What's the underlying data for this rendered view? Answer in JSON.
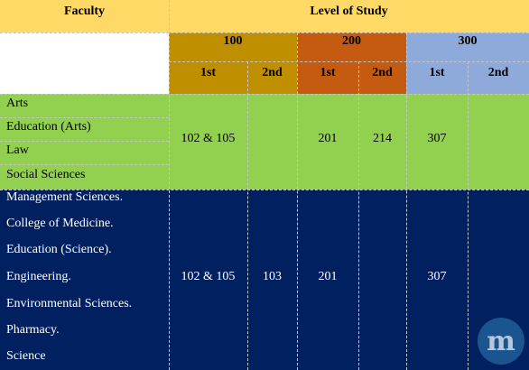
{
  "header": {
    "faculty": "Faculty",
    "level_of_study": "Level of Study"
  },
  "levels": [
    {
      "label": "100",
      "color": "#bf8f00"
    },
    {
      "label": "200",
      "color": "#c55a11"
    },
    {
      "label": "300",
      "color": "#8eaadb"
    }
  ],
  "semesters": [
    "1st",
    "2nd",
    "1st",
    "2nd",
    "1st",
    "2nd"
  ],
  "groups": [
    {
      "color": "#92d050",
      "faculties": [
        "Arts",
        "Education (Arts)",
        "Law",
        "Social Sciences"
      ],
      "courses": [
        "102 & 105",
        "",
        "201",
        "214",
        "307",
        ""
      ]
    },
    {
      "color": "#002060",
      "faculties": [
        "Management Sciences.",
        "College of Medicine.",
        "Education (Science).",
        "Engineering.",
        "Environmental Sciences.",
        "Pharmacy.",
        "Science"
      ],
      "courses": [
        "102 & 105",
        "103",
        "201",
        "",
        "307",
        ""
      ]
    }
  ],
  "header_color": "#ffd966",
  "watermark_icon": "myschool-logo-icon"
}
